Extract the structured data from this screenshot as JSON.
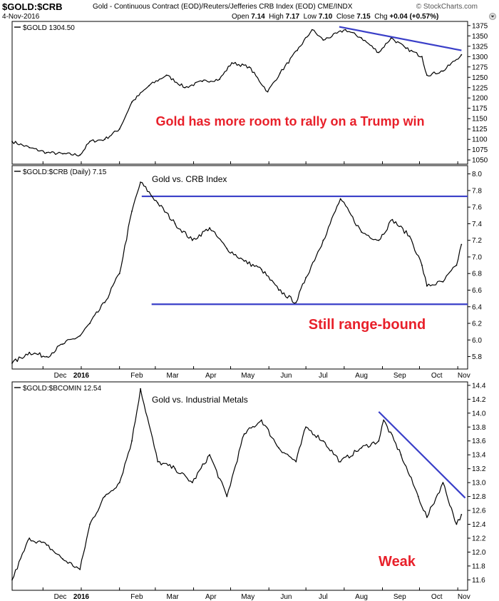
{
  "header": {
    "symbol": "$GOLD:$CRB",
    "description": "Gold - Continuous Contract (EOD)/Reuters/Jefferies CRB Index (EOD) CME/INDX",
    "brand": "© StockCharts.com",
    "date": "4-Nov-2016",
    "open_label": "Open",
    "open": "7.14",
    "high_label": "High",
    "high": "7.17",
    "low_label": "Low",
    "low": "7.10",
    "close_label": "Close",
    "close": "7.15",
    "chg_label": "Chg",
    "chg": "+0.04 (+0.57%)",
    "menu_icon": "dropdown-arrow-icon"
  },
  "x_axis": {
    "labels": [
      "Dec",
      "2016",
      "Feb",
      "Mar",
      "Apr",
      "May",
      "Jun",
      "Jul",
      "Aug",
      "Sep",
      "Oct",
      "Nov"
    ],
    "bold": [
      "2016"
    ]
  },
  "chart_data": [
    {
      "type": "line",
      "legend": "$GOLD 1304.50",
      "annotation": "Gold has more room to rally on a Trump win",
      "ylim": [
        1040,
        1385
      ],
      "yticks": [
        1050,
        1075,
        1100,
        1125,
        1150,
        1175,
        1200,
        1225,
        1250,
        1275,
        1300,
        1325,
        1350,
        1375
      ],
      "x": [
        "2015-11-06",
        "2015-11-20",
        "2015-12-04",
        "2015-12-17",
        "2015-12-31",
        "2016-01-08",
        "2016-01-20",
        "2016-02-01",
        "2016-02-11",
        "2016-02-25",
        "2016-03-10",
        "2016-03-25",
        "2016-04-08",
        "2016-04-22",
        "2016-05-02",
        "2016-05-16",
        "2016-05-31",
        "2016-06-10",
        "2016-06-24",
        "2016-07-06",
        "2016-07-15",
        "2016-08-02",
        "2016-08-15",
        "2016-08-29",
        "2016-09-08",
        "2016-09-20",
        "2016-10-03",
        "2016-10-07",
        "2016-10-20",
        "2016-11-04"
      ],
      "values": [
        1095,
        1080,
        1068,
        1065,
        1062,
        1095,
        1100,
        1125,
        1190,
        1230,
        1255,
        1225,
        1240,
        1245,
        1285,
        1275,
        1215,
        1260,
        1315,
        1365,
        1340,
        1365,
        1345,
        1310,
        1345,
        1320,
        1300,
        1255,
        1265,
        1304.5
      ],
      "trendline": {
        "from": [
          "2016-07-28",
          1372
        ],
        "to": [
          "2016-11-04",
          1315
        ]
      }
    },
    {
      "type": "line",
      "legend": "$GOLD:$CRB (Daily) 7.15",
      "title": "Gold vs. CRB Index",
      "annotation": "Still range-bound",
      "ylim": [
        5.65,
        8.1
      ],
      "yticks": [
        5.8,
        6.0,
        6.2,
        6.4,
        6.6,
        6.8,
        7.0,
        7.2,
        7.4,
        7.6,
        7.8,
        8.0
      ],
      "x": [
        "2015-11-06",
        "2015-11-20",
        "2015-12-04",
        "2015-12-17",
        "2015-12-31",
        "2016-01-08",
        "2016-01-20",
        "2016-02-01",
        "2016-02-11",
        "2016-02-18",
        "2016-03-03",
        "2016-03-17",
        "2016-03-31",
        "2016-04-14",
        "2016-04-28",
        "2016-05-12",
        "2016-05-26",
        "2016-06-09",
        "2016-06-23",
        "2016-07-01",
        "2016-07-15",
        "2016-07-29",
        "2016-08-15",
        "2016-08-29",
        "2016-09-09",
        "2016-09-23",
        "2016-10-03",
        "2016-10-07",
        "2016-10-20",
        "2016-10-31",
        "2016-11-04"
      ],
      "values": [
        5.72,
        5.85,
        5.8,
        5.95,
        6.05,
        6.2,
        6.45,
        6.8,
        7.55,
        7.9,
        7.65,
        7.4,
        7.2,
        7.35,
        7.1,
        6.95,
        6.85,
        6.6,
        6.45,
        6.75,
        7.2,
        7.7,
        7.3,
        7.2,
        7.45,
        7.25,
        6.9,
        6.65,
        6.7,
        6.9,
        7.15
      ],
      "support_line": 6.43,
      "resistance_line": 7.73
    },
    {
      "type": "line",
      "legend": "$GOLD:$BCOMIN 12.54",
      "title": "Gold vs. Industrial Metals",
      "annotation": "Weak",
      "ylim": [
        11.45,
        14.45
      ],
      "yticks": [
        11.6,
        11.8,
        12.0,
        12.2,
        12.4,
        12.6,
        12.8,
        13.0,
        13.2,
        13.4,
        13.6,
        13.8,
        14.0,
        14.2,
        14.4
      ],
      "x": [
        "2015-11-06",
        "2015-11-20",
        "2015-12-04",
        "2015-12-17",
        "2015-12-31",
        "2016-01-08",
        "2016-01-20",
        "2016-02-01",
        "2016-02-11",
        "2016-02-18",
        "2016-03-03",
        "2016-03-17",
        "2016-03-31",
        "2016-04-14",
        "2016-04-28",
        "2016-05-12",
        "2016-05-26",
        "2016-06-09",
        "2016-06-23",
        "2016-07-01",
        "2016-07-15",
        "2016-07-29",
        "2016-08-15",
        "2016-08-29",
        "2016-09-02",
        "2016-09-16",
        "2016-09-30",
        "2016-10-07",
        "2016-10-20",
        "2016-10-31",
        "2016-11-04"
      ],
      "values": [
        11.6,
        12.2,
        12.1,
        11.9,
        11.75,
        12.4,
        12.8,
        13.0,
        13.6,
        14.35,
        13.3,
        13.2,
        13.0,
        13.4,
        12.8,
        13.7,
        13.9,
        13.5,
        13.3,
        13.8,
        13.6,
        13.3,
        13.5,
        13.6,
        13.9,
        13.4,
        12.8,
        12.5,
        13.0,
        12.4,
        12.54
      ],
      "trendline": {
        "from": [
          "2016-08-29",
          14.02
        ],
        "to": [
          "2016-11-07",
          12.78
        ]
      }
    }
  ]
}
